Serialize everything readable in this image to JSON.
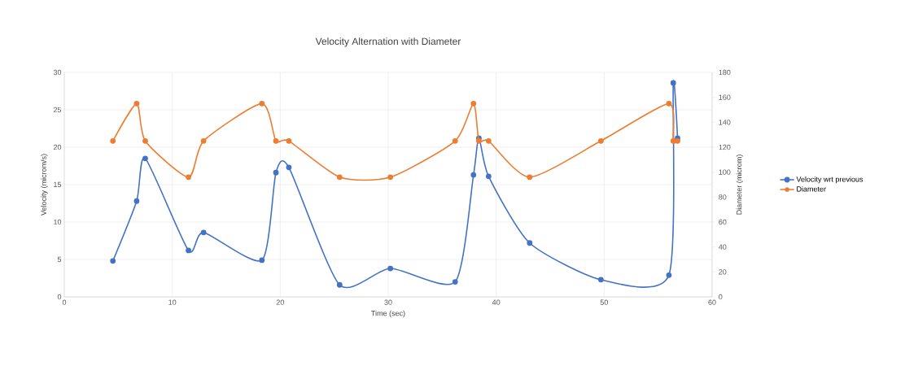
{
  "chart_data": {
    "type": "line",
    "title": "Velocity Alternation with Diameter",
    "xlabel": "Time (sec)",
    "ylabel": "Velocity (microm/s)",
    "y2label": "Diameter (microm)",
    "x": [
      4.5,
      6.7,
      7.5,
      11.5,
      12.9,
      18.3,
      19.6,
      20.8,
      25.5,
      30.2,
      36.2,
      37.9,
      38.4,
      39.3,
      43.1,
      49.7,
      56.0,
      56.4,
      56.8
    ],
    "series": [
      {
        "name": "Velocity wrt previous",
        "color": "#4472c4",
        "values": [
          4.8,
          12.8,
          18.5,
          6.2,
          8.6,
          4.9,
          16.6,
          17.3,
          1.6,
          3.8,
          2.0,
          16.3,
          21.2,
          16.1,
          7.2,
          2.3,
          2.9,
          28.6,
          21.2
        ]
      },
      {
        "name": "Diameter",
        "color": "#ed7d31",
        "axis": "y2",
        "values": [
          125,
          155,
          125,
          96,
          125,
          155,
          125,
          125,
          96,
          96,
          125,
          155,
          125,
          125,
          96,
          125,
          155,
          125,
          125
        ]
      }
    ],
    "xlim": [
      0,
      60
    ],
    "xticks": [
      0,
      10,
      20,
      30,
      40,
      50,
      60
    ],
    "ylim": [
      0,
      30
    ],
    "yticks": [
      0,
      5,
      10,
      15,
      20,
      25,
      30
    ],
    "y2lim": [
      0,
      180
    ],
    "y2ticks": [
      0,
      20,
      40,
      60,
      80,
      100,
      120,
      140,
      160,
      180
    ],
    "grid": true,
    "legend": "right",
    "marker": "circle",
    "line_style": "solid"
  }
}
